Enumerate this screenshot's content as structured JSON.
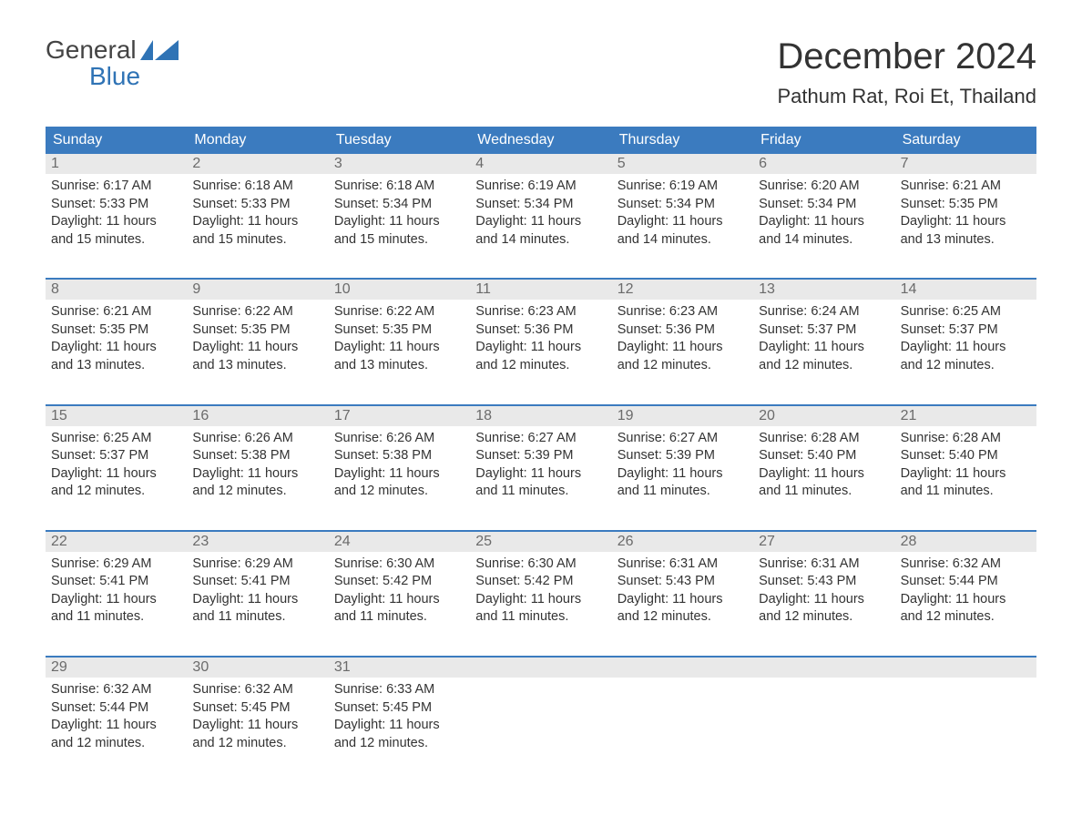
{
  "logo": {
    "text_top": "General",
    "text_bottom": "Blue",
    "icon_color": "#2f73b5"
  },
  "title": "December 2024",
  "location": "Pathum Rat, Roi Et, Thailand",
  "colors": {
    "header_bg": "#3b7bbf",
    "header_text": "#ffffff",
    "daynum_bg": "#e9e9e9",
    "daynum_text": "#6b6b6b",
    "week_divider": "#3b7bbf",
    "body_text": "#333333",
    "page_bg": "#ffffff"
  },
  "fonts": {
    "title_size_pt": 30,
    "location_size_pt": 17,
    "weekday_size_pt": 12,
    "body_size_pt": 11
  },
  "weekdays": [
    "Sunday",
    "Monday",
    "Tuesday",
    "Wednesday",
    "Thursday",
    "Friday",
    "Saturday"
  ],
  "weeks": [
    [
      {
        "num": "1",
        "sunrise": "6:17 AM",
        "sunset": "5:33 PM",
        "daylight": "11 hours and 15 minutes."
      },
      {
        "num": "2",
        "sunrise": "6:18 AM",
        "sunset": "5:33 PM",
        "daylight": "11 hours and 15 minutes."
      },
      {
        "num": "3",
        "sunrise": "6:18 AM",
        "sunset": "5:34 PM",
        "daylight": "11 hours and 15 minutes."
      },
      {
        "num": "4",
        "sunrise": "6:19 AM",
        "sunset": "5:34 PM",
        "daylight": "11 hours and 14 minutes."
      },
      {
        "num": "5",
        "sunrise": "6:19 AM",
        "sunset": "5:34 PM",
        "daylight": "11 hours and 14 minutes."
      },
      {
        "num": "6",
        "sunrise": "6:20 AM",
        "sunset": "5:34 PM",
        "daylight": "11 hours and 14 minutes."
      },
      {
        "num": "7",
        "sunrise": "6:21 AM",
        "sunset": "5:35 PM",
        "daylight": "11 hours and 13 minutes."
      }
    ],
    [
      {
        "num": "8",
        "sunrise": "6:21 AM",
        "sunset": "5:35 PM",
        "daylight": "11 hours and 13 minutes."
      },
      {
        "num": "9",
        "sunrise": "6:22 AM",
        "sunset": "5:35 PM",
        "daylight": "11 hours and 13 minutes."
      },
      {
        "num": "10",
        "sunrise": "6:22 AM",
        "sunset": "5:35 PM",
        "daylight": "11 hours and 13 minutes."
      },
      {
        "num": "11",
        "sunrise": "6:23 AM",
        "sunset": "5:36 PM",
        "daylight": "11 hours and 12 minutes."
      },
      {
        "num": "12",
        "sunrise": "6:23 AM",
        "sunset": "5:36 PM",
        "daylight": "11 hours and 12 minutes."
      },
      {
        "num": "13",
        "sunrise": "6:24 AM",
        "sunset": "5:37 PM",
        "daylight": "11 hours and 12 minutes."
      },
      {
        "num": "14",
        "sunrise": "6:25 AM",
        "sunset": "5:37 PM",
        "daylight": "11 hours and 12 minutes."
      }
    ],
    [
      {
        "num": "15",
        "sunrise": "6:25 AM",
        "sunset": "5:37 PM",
        "daylight": "11 hours and 12 minutes."
      },
      {
        "num": "16",
        "sunrise": "6:26 AM",
        "sunset": "5:38 PM",
        "daylight": "11 hours and 12 minutes."
      },
      {
        "num": "17",
        "sunrise": "6:26 AM",
        "sunset": "5:38 PM",
        "daylight": "11 hours and 12 minutes."
      },
      {
        "num": "18",
        "sunrise": "6:27 AM",
        "sunset": "5:39 PM",
        "daylight": "11 hours and 11 minutes."
      },
      {
        "num": "19",
        "sunrise": "6:27 AM",
        "sunset": "5:39 PM",
        "daylight": "11 hours and 11 minutes."
      },
      {
        "num": "20",
        "sunrise": "6:28 AM",
        "sunset": "5:40 PM",
        "daylight": "11 hours and 11 minutes."
      },
      {
        "num": "21",
        "sunrise": "6:28 AM",
        "sunset": "5:40 PM",
        "daylight": "11 hours and 11 minutes."
      }
    ],
    [
      {
        "num": "22",
        "sunrise": "6:29 AM",
        "sunset": "5:41 PM",
        "daylight": "11 hours and 11 minutes."
      },
      {
        "num": "23",
        "sunrise": "6:29 AM",
        "sunset": "5:41 PM",
        "daylight": "11 hours and 11 minutes."
      },
      {
        "num": "24",
        "sunrise": "6:30 AM",
        "sunset": "5:42 PM",
        "daylight": "11 hours and 11 minutes."
      },
      {
        "num": "25",
        "sunrise": "6:30 AM",
        "sunset": "5:42 PM",
        "daylight": "11 hours and 11 minutes."
      },
      {
        "num": "26",
        "sunrise": "6:31 AM",
        "sunset": "5:43 PM",
        "daylight": "11 hours and 12 minutes."
      },
      {
        "num": "27",
        "sunrise": "6:31 AM",
        "sunset": "5:43 PM",
        "daylight": "11 hours and 12 minutes."
      },
      {
        "num": "28",
        "sunrise": "6:32 AM",
        "sunset": "5:44 PM",
        "daylight": "11 hours and 12 minutes."
      }
    ],
    [
      {
        "num": "29",
        "sunrise": "6:32 AM",
        "sunset": "5:44 PM",
        "daylight": "11 hours and 12 minutes."
      },
      {
        "num": "30",
        "sunrise": "6:32 AM",
        "sunset": "5:45 PM",
        "daylight": "11 hours and 12 minutes."
      },
      {
        "num": "31",
        "sunrise": "6:33 AM",
        "sunset": "5:45 PM",
        "daylight": "11 hours and 12 minutes."
      },
      null,
      null,
      null,
      null
    ]
  ],
  "labels": {
    "sunrise": "Sunrise:",
    "sunset": "Sunset:",
    "daylight": "Daylight:"
  }
}
